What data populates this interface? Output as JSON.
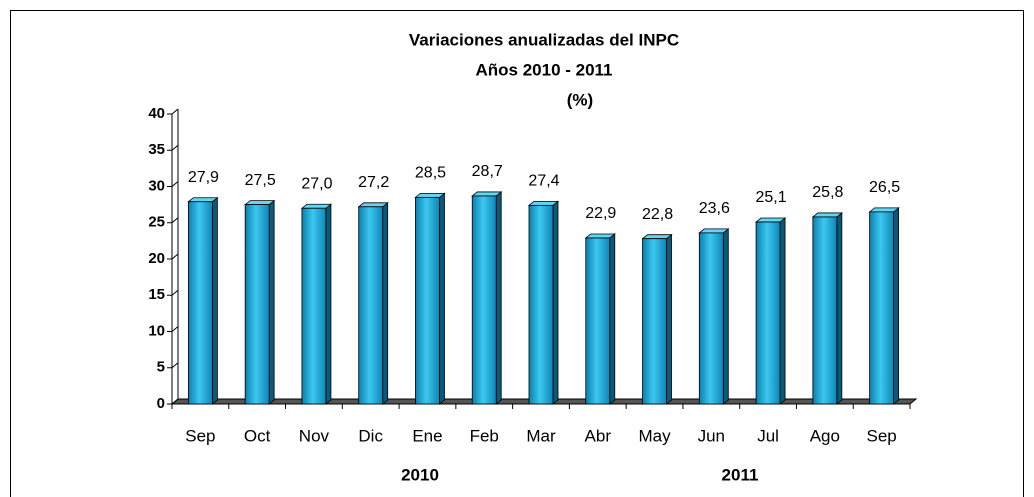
{
  "chart_data": {
    "type": "bar3d",
    "title": [
      "Variaciones anualizadas del INPC",
      "Años 2010 - 2011",
      "(%)"
    ],
    "categories": [
      "Sep",
      "Oct",
      "Nov",
      "Dic",
      "Ene",
      "Feb",
      "Mar",
      "Abr",
      "May",
      "Jun",
      "Jul",
      "Ago",
      "Sep"
    ],
    "values": [
      27.9,
      27.5,
      27.0,
      27.2,
      28.5,
      28.7,
      27.4,
      22.9,
      22.8,
      23.6,
      25.1,
      25.8,
      26.5
    ],
    "value_labels": [
      "27,9",
      "27,5",
      "27,0",
      "27,2",
      "28,5",
      "28,7",
      "27,4",
      "22,9",
      "22,8",
      "23,6",
      "25,1",
      "25,8",
      "26,5"
    ],
    "group_labels": [
      "2010",
      "2011"
    ],
    "color": "#1aa3d4",
    "ylim": [
      0,
      40
    ],
    "yticks": [
      0,
      5,
      10,
      15,
      20,
      25,
      30,
      35,
      40
    ]
  }
}
